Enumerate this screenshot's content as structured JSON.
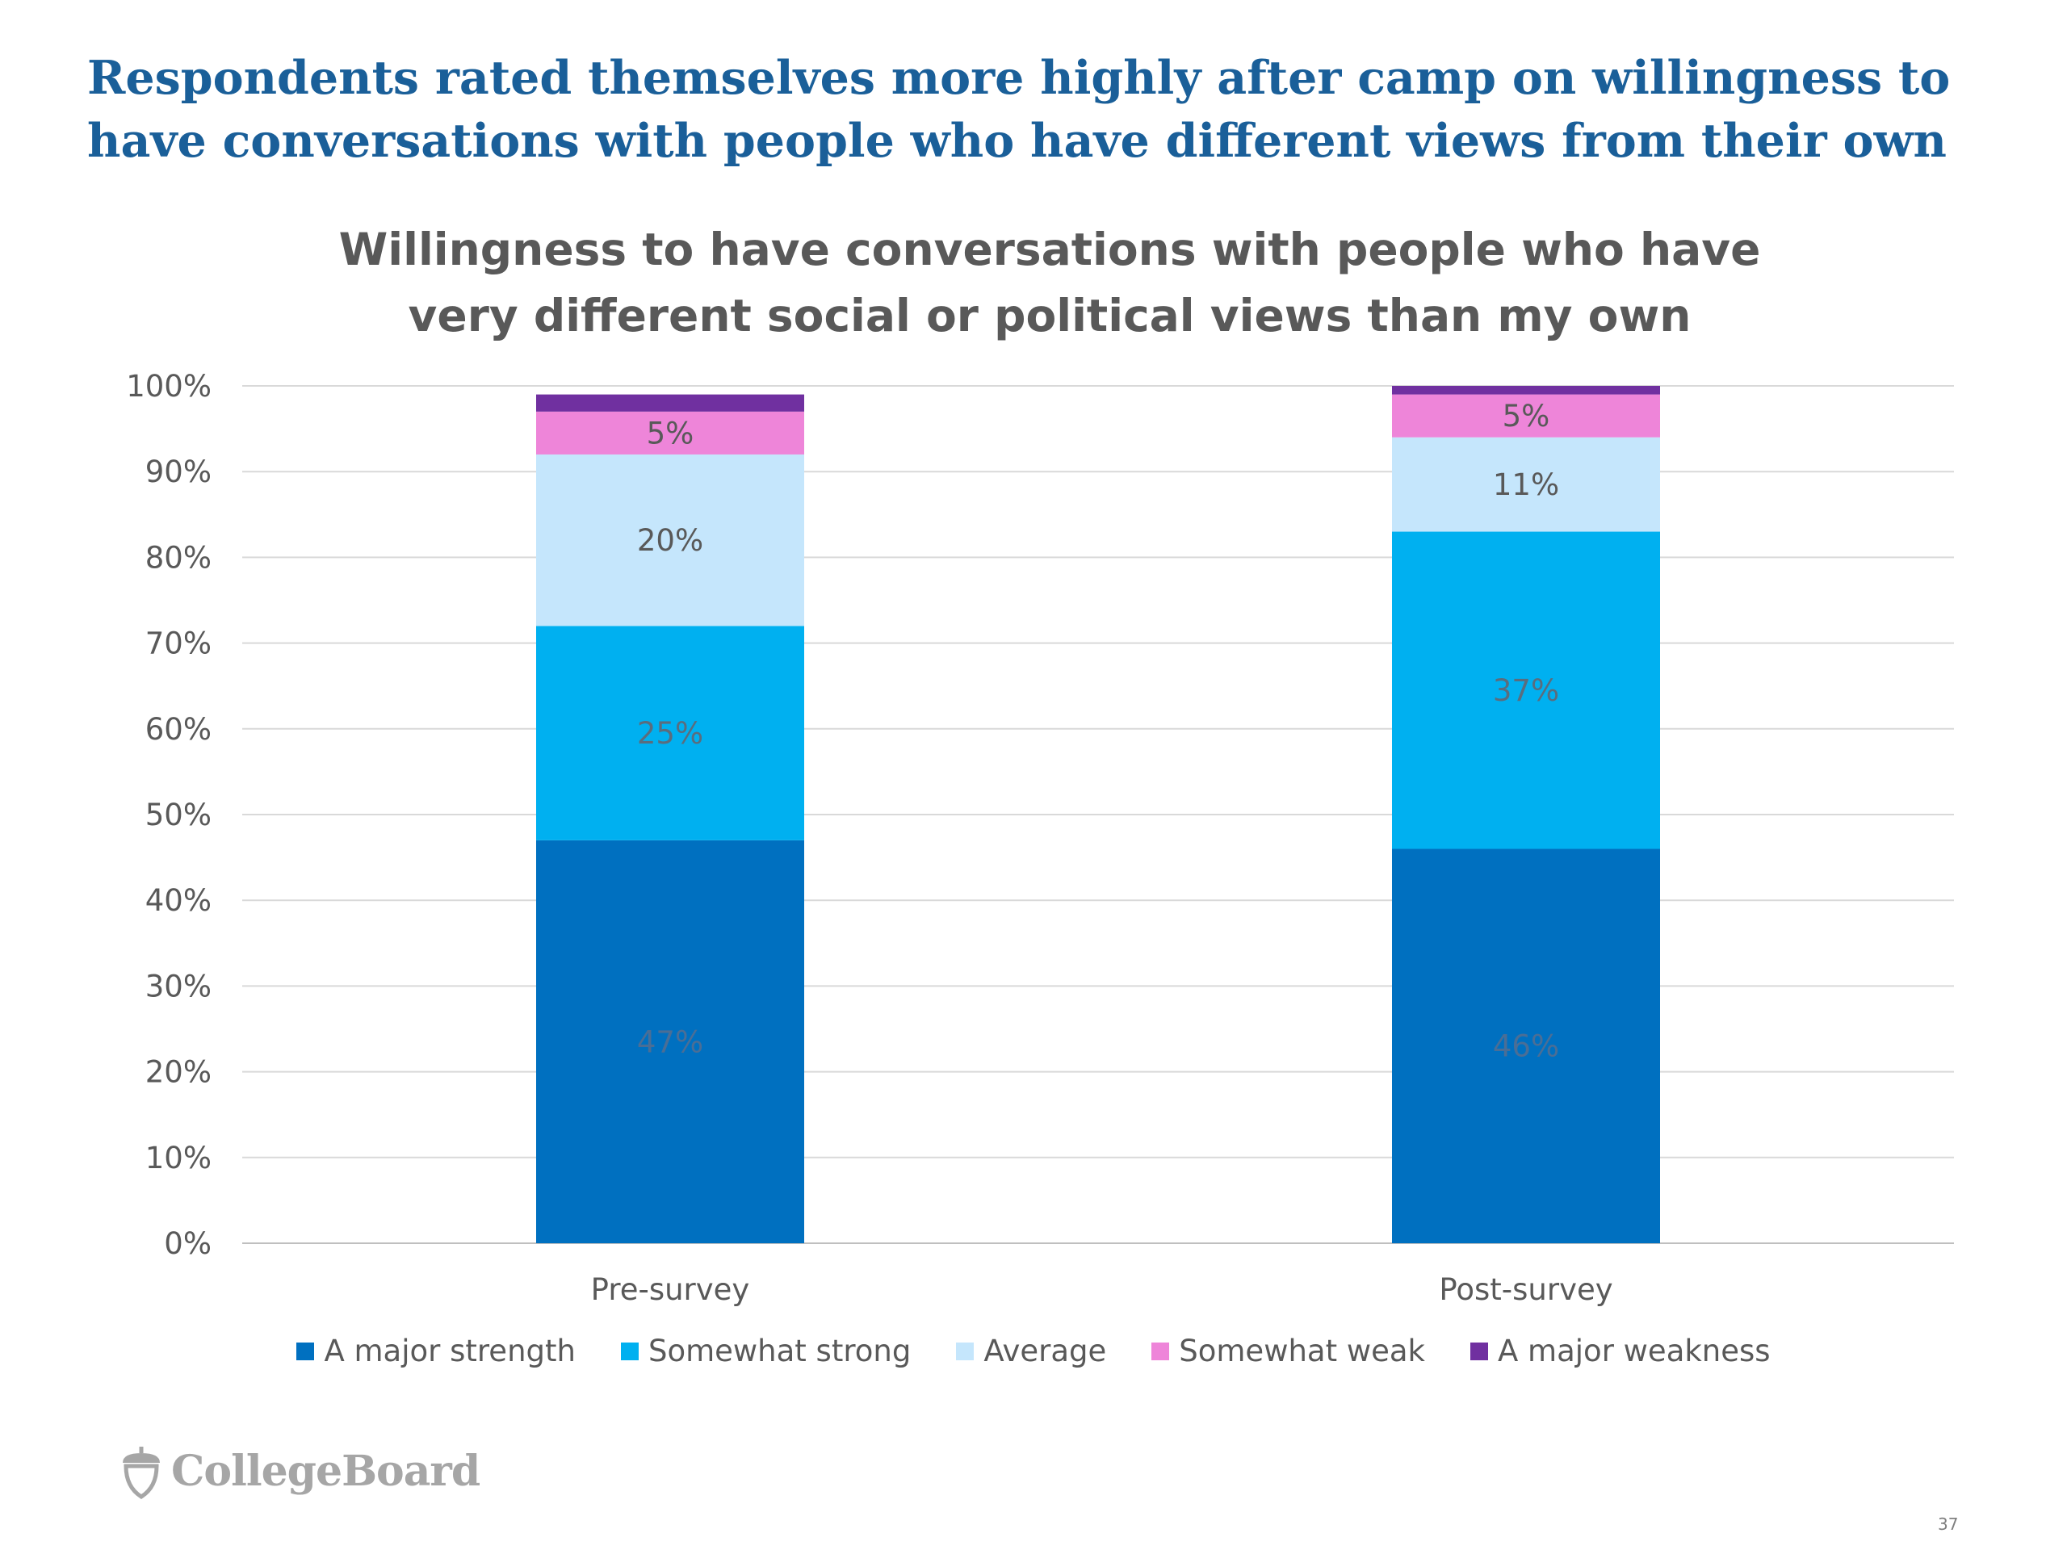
{
  "slide": {
    "title": "Respondents rated themselves more highly after camp on willingness to have conversations with people who have different views from their own",
    "page_number": "37",
    "logo_text": "CollegeBoard"
  },
  "chart_data": {
    "type": "bar",
    "stacked": true,
    "title": "Willingness to have conversations with people who have very different social or political views than my own",
    "xlabel": "",
    "ylabel": "",
    "ylim": [
      0,
      100
    ],
    "y_ticks": [
      "0%",
      "10%",
      "20%",
      "30%",
      "40%",
      "50%",
      "60%",
      "70%",
      "80%",
      "90%",
      "100%"
    ],
    "grid": true,
    "legend_position": "bottom",
    "categories": [
      "Pre-survey",
      "Post-survey"
    ],
    "series": [
      {
        "name": "A major strength",
        "color": "#0070c0",
        "values": [
          47,
          46
        ],
        "labels": [
          "47%",
          "46%"
        ],
        "label_color": "#4a6e96"
      },
      {
        "name": "Somewhat strong",
        "color": "#00b0f0",
        "values": [
          25,
          37
        ],
        "labels": [
          "25%",
          "37%"
        ],
        "label_color": "#5a6d7e"
      },
      {
        "name": "Average",
        "color": "#c5e6fc",
        "values": [
          20,
          11
        ],
        "labels": [
          "20%",
          "11%"
        ],
        "label_color": "#595959"
      },
      {
        "name": "Somewhat weak",
        "color": "#ee85d9",
        "values": [
          5,
          5
        ],
        "labels": [
          "5%",
          "5%"
        ],
        "label_color": "#595959"
      },
      {
        "name": "A major weakness",
        "color": "#7030a0",
        "values": [
          2,
          1
        ],
        "labels": [
          "",
          ""
        ],
        "label_color": "#595959"
      }
    ]
  }
}
